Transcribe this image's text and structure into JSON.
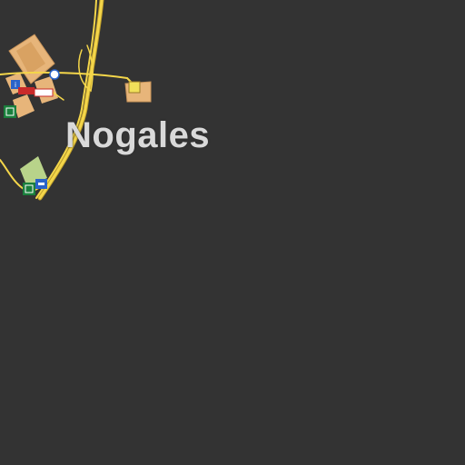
{
  "map": {
    "city_label": "Nogales",
    "colors": {
      "background": "#333333",
      "road": "#f4d64a",
      "road_casing": "#b99a2a",
      "building": "#e7b57a",
      "building_dark": "#c9945a",
      "park": "#b8d38a",
      "label": "#d9d9d9"
    },
    "pois": [
      {
        "name": "restaurant-icon",
        "color": "#1a7f3c"
      },
      {
        "name": "hotel-icon",
        "color": "#2a63c9"
      },
      {
        "name": "shop-icon",
        "color": "#c92a2a"
      },
      {
        "name": "fuel-icon",
        "color": "#3c9a3c"
      },
      {
        "name": "info-icon",
        "color": "#2a63c9"
      }
    ]
  }
}
